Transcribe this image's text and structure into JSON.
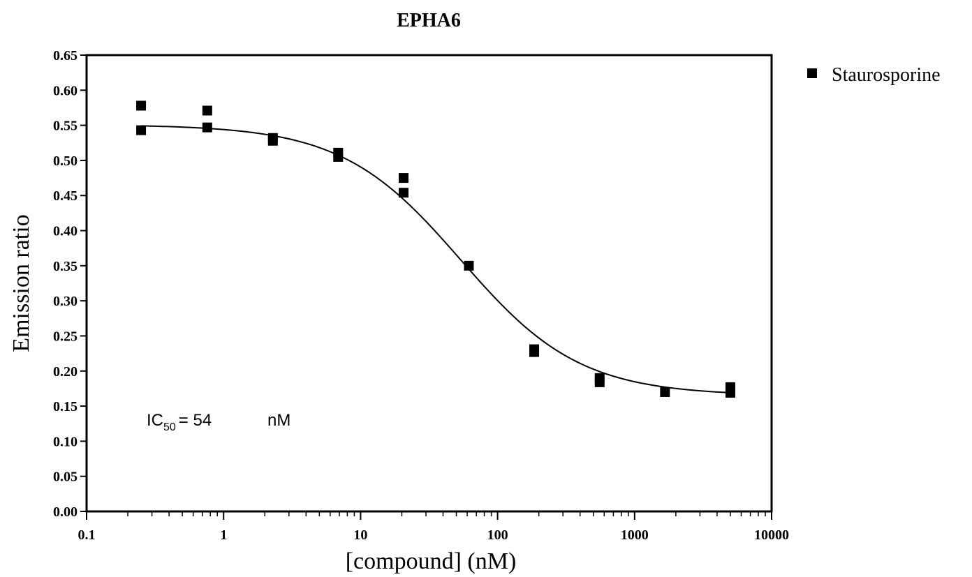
{
  "chart_data": {
    "type": "scatter",
    "title": "EPHA6",
    "xlabel": "[compound] (nM)",
    "ylabel": "Emission ratio",
    "xscale": "log",
    "xlim": [
      0.1,
      10000
    ],
    "ylim": [
      0.0,
      0.65
    ],
    "x_ticks": [
      "0.1",
      "1",
      "10",
      "100",
      "1000",
      "10000"
    ],
    "y_ticks": [
      "0.00",
      "0.05",
      "0.10",
      "0.15",
      "0.20",
      "0.25",
      "0.30",
      "0.35",
      "0.40",
      "0.45",
      "0.50",
      "0.55",
      "0.60",
      "0.65"
    ],
    "grid": false,
    "legend_position": "right",
    "series": [
      {
        "name": "Staurosporine",
        "marker": "square",
        "color": "#000000",
        "points": [
          {
            "x": 0.25,
            "y": 0.578
          },
          {
            "x": 0.25,
            "y": 0.543
          },
          {
            "x": 0.76,
            "y": 0.571
          },
          {
            "x": 0.76,
            "y": 0.547
          },
          {
            "x": 2.29,
            "y": 0.532
          },
          {
            "x": 2.29,
            "y": 0.528
          },
          {
            "x": 6.86,
            "y": 0.511
          },
          {
            "x": 6.86,
            "y": 0.505
          },
          {
            "x": 20.6,
            "y": 0.475
          },
          {
            "x": 20.6,
            "y": 0.454
          },
          {
            "x": 61.7,
            "y": 0.35
          },
          {
            "x": 185,
            "y": 0.231
          },
          {
            "x": 185,
            "y": 0.227
          },
          {
            "x": 556,
            "y": 0.19
          },
          {
            "x": 556,
            "y": 0.184
          },
          {
            "x": 1667,
            "y": 0.17
          },
          {
            "x": 5000,
            "y": 0.177
          },
          {
            "x": 5000,
            "y": 0.169
          }
        ]
      }
    ],
    "fit_curve": {
      "model": "sigmoidal dose-response",
      "top": 0.551,
      "bottom": 0.165,
      "ic50": 54,
      "hill_slope": 1.0
    },
    "annotation": {
      "prefix": "IC",
      "subscript": "50",
      "value": "= 54",
      "unit": "nM"
    }
  }
}
